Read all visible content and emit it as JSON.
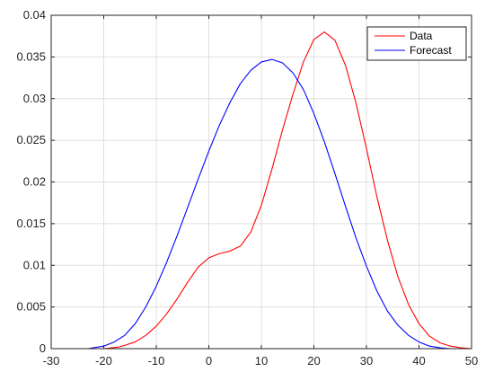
{
  "chart_data": {
    "type": "line",
    "xlim": [
      -30,
      50
    ],
    "ylim": [
      0,
      0.04
    ],
    "x_ticks": [
      -30,
      -20,
      -10,
      0,
      10,
      20,
      30,
      40,
      50
    ],
    "y_ticks": [
      0,
      0.005,
      0.01,
      0.015,
      0.02,
      0.025,
      0.03,
      0.035,
      0.04
    ],
    "x_tick_labels": [
      "-30",
      "-20",
      "-10",
      "0",
      "10",
      "20",
      "30",
      "40",
      "50"
    ],
    "y_tick_labels": [
      "0",
      "0.005",
      "0.01",
      "0.015",
      "0.02",
      "0.025",
      "0.03",
      "0.035",
      "0.04"
    ],
    "grid": true,
    "legend_position": "top-right",
    "series": [
      {
        "name": "Data",
        "color": "#ff0000",
        "points": [
          [
            -20,
            0.0
          ],
          [
            -17,
            0.0002
          ],
          [
            -14,
            0.0008
          ],
          [
            -12,
            0.0016
          ],
          [
            -10,
            0.0027
          ],
          [
            -8,
            0.0042
          ],
          [
            -6,
            0.006
          ],
          [
            -4,
            0.008
          ],
          [
            -2,
            0.0098
          ],
          [
            0,
            0.0109
          ],
          [
            2,
            0.0114
          ],
          [
            4,
            0.0117
          ],
          [
            6,
            0.0123
          ],
          [
            8,
            0.014
          ],
          [
            10,
            0.0172
          ],
          [
            12,
            0.0215
          ],
          [
            14,
            0.0262
          ],
          [
            16,
            0.0305
          ],
          [
            18,
            0.0344
          ],
          [
            20,
            0.0371
          ],
          [
            22,
            0.038
          ],
          [
            24,
            0.037
          ],
          [
            26,
            0.034
          ],
          [
            28,
            0.0295
          ],
          [
            30,
            0.024
          ],
          [
            32,
            0.0182
          ],
          [
            34,
            0.013
          ],
          [
            36,
            0.0086
          ],
          [
            38,
            0.0053
          ],
          [
            40,
            0.003
          ],
          [
            42,
            0.0015
          ],
          [
            44,
            0.0007
          ],
          [
            46,
            0.0003
          ],
          [
            48,
            0.0001
          ],
          [
            50,
            0.0
          ]
        ]
      },
      {
        "name": "Forecast",
        "color": "#0000ff",
        "points": [
          [
            -23,
            0.0
          ],
          [
            -20,
            0.0003
          ],
          [
            -18,
            0.0008
          ],
          [
            -16,
            0.0016
          ],
          [
            -14,
            0.003
          ],
          [
            -12,
            0.005
          ],
          [
            -10,
            0.0075
          ],
          [
            -8,
            0.0104
          ],
          [
            -6,
            0.0136
          ],
          [
            -4,
            0.017
          ],
          [
            -2,
            0.0204
          ],
          [
            0,
            0.0237
          ],
          [
            2,
            0.0268
          ],
          [
            4,
            0.0295
          ],
          [
            6,
            0.0318
          ],
          [
            8,
            0.0334
          ],
          [
            10,
            0.0344
          ],
          [
            12,
            0.0347
          ],
          [
            14,
            0.0343
          ],
          [
            16,
            0.0331
          ],
          [
            18,
            0.0311
          ],
          [
            20,
            0.0282
          ],
          [
            22,
            0.0248
          ],
          [
            24,
            0.021
          ],
          [
            26,
            0.0171
          ],
          [
            28,
            0.0133
          ],
          [
            30,
            0.0099
          ],
          [
            32,
            0.0069
          ],
          [
            34,
            0.0045
          ],
          [
            36,
            0.0028
          ],
          [
            38,
            0.0016
          ],
          [
            40,
            0.0008
          ],
          [
            42,
            0.0003
          ],
          [
            44,
            0.0001
          ],
          [
            46,
            0.0
          ]
        ]
      }
    ]
  }
}
